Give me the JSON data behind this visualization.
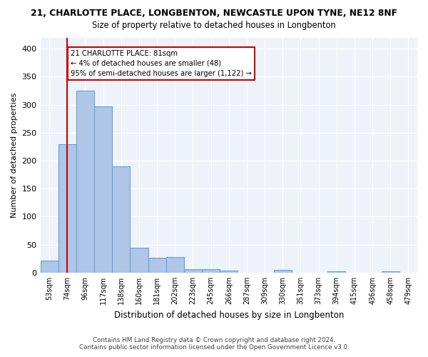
{
  "title": "21, CHARLOTTE PLACE, LONGBENTON, NEWCASTLE UPON TYNE, NE12 8NF",
  "subtitle": "Size of property relative to detached houses in Longbenton",
  "xlabel": "Distribution of detached houses by size in Longbenton",
  "ylabel": "Number of detached properties",
  "footer_line1": "Contains HM Land Registry data © Crown copyright and database right 2024.",
  "footer_line2": "Contains public sector information licensed under the Open Government Licence v3.0.",
  "bin_labels": [
    "53sqm",
    "74sqm",
    "96sqm",
    "117sqm",
    "138sqm",
    "160sqm",
    "181sqm",
    "202sqm",
    "223sqm",
    "245sqm",
    "266sqm",
    "287sqm",
    "309sqm",
    "330sqm",
    "351sqm",
    "373sqm",
    "394sqm",
    "415sqm",
    "436sqm",
    "458sqm",
    "479sqm"
  ],
  "bar_values": [
    22,
    230,
    325,
    297,
    190,
    45,
    27,
    28,
    6,
    6,
    4,
    0,
    0,
    5,
    0,
    0,
    3,
    0,
    0,
    2,
    0
  ],
  "bar_color": "#aec6e8",
  "bar_edge_color": "#5b9bd5",
  "vline_x_index": 1,
  "vline_color": "#cc0000",
  "annotation_line1": "21 CHARLOTTE PLACE: 81sqm",
  "annotation_line2": "← 4% of detached houses are smaller (48)",
  "annotation_line3": "95% of semi-detached houses are larger (1,122) →",
  "annotation_box_color": "white",
  "annotation_box_edge_color": "#cc0000",
  "ylim_max": 420,
  "background_color": "#eef2f9"
}
